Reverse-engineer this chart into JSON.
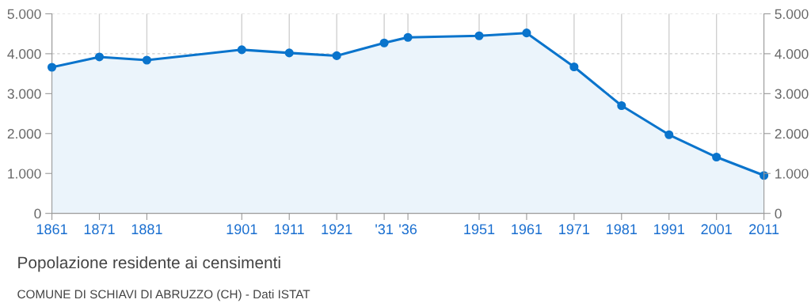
{
  "chart_data": {
    "type": "area",
    "title": "Popolazione residente ai censimenti",
    "annotations": [
      "COMUNE DI SCHIAVI DI ABRUZZO (CH) - Dati ISTAT"
    ],
    "x": [
      1861,
      1871,
      1881,
      1901,
      1911,
      1921,
      1931,
      1936,
      1951,
      1961,
      1971,
      1981,
      1991,
      2001,
      2011
    ],
    "series": [
      {
        "color": "#0a74cc",
        "values": [
          3660,
          3920,
          3840,
          4100,
          4020,
          3950,
          4270,
          4410,
          4450,
          4520,
          3670,
          2700,
          1970,
          1410,
          950
        ]
      }
    ],
    "xlim": [
      1861,
      2011
    ],
    "xticks": [
      1861,
      1871,
      1881,
      1901,
      1911,
      1921,
      {
        "value": 1931,
        "label": "'31"
      },
      {
        "value": 1936,
        "label": "'36"
      },
      1951,
      1961,
      1971,
      1981,
      1991,
      2001,
      2011
    ],
    "ylim": [
      0,
      5000
    ],
    "yticks": [
      {
        "value": 0,
        "label": "0"
      },
      {
        "value": 1000,
        "label": "1.000"
      },
      {
        "value": 2000,
        "label": "2.000"
      },
      {
        "value": 3000,
        "label": "3.000"
      },
      {
        "value": 4000,
        "label": "4.000"
      },
      {
        "value": 5000,
        "label": "5.000"
      }
    ],
    "y2lim": [
      0,
      5000
    ],
    "y2ticks": [
      {
        "value": 0,
        "label": "0"
      },
      {
        "value": 1000,
        "label": "1.000"
      },
      {
        "value": 2000,
        "label": "2.000"
      },
      {
        "value": 3000,
        "label": "3.000"
      },
      {
        "value": 4000,
        "label": "4.000"
      },
      {
        "value": 5000,
        "label": "5.000"
      }
    ],
    "grid": true,
    "marker": "circle",
    "line_style": "solid"
  }
}
